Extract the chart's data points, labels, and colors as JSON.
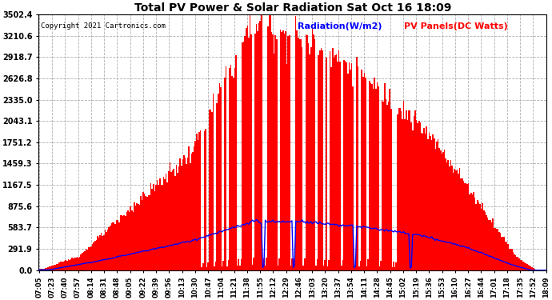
{
  "title": "Total PV Power & Solar Radiation Sat Oct 16 18:09",
  "copyright": "Copyright 2021 Cartronics.com",
  "legend_radiation": "Radiation(W/m2)",
  "legend_pv": "PV Panels(DC Watts)",
  "yticks": [
    0.0,
    291.9,
    583.7,
    875.6,
    1167.5,
    1459.3,
    1751.2,
    2043.1,
    2335.0,
    2626.8,
    2918.7,
    3210.6,
    3502.4
  ],
  "ymax": 3502.4,
  "ymin": 0.0,
  "bg_color": "#ffffff",
  "plot_bg_color": "#ffffff",
  "grid_color": "#b0b0b0",
  "bar_color": "#ff0000",
  "line_color": "#0000ff",
  "title_color": "#000000",
  "copyright_color": "#000000",
  "radiation_legend_color": "#0000ff",
  "pv_legend_color": "#ff0000",
  "n_points": 400,
  "xtick_labels": [
    "07:05",
    "07:23",
    "07:40",
    "07:57",
    "08:14",
    "08:31",
    "08:48",
    "09:05",
    "09:22",
    "09:39",
    "09:56",
    "10:13",
    "10:30",
    "10:47",
    "11:04",
    "11:21",
    "11:38",
    "11:55",
    "12:12",
    "12:29",
    "12:46",
    "13:03",
    "13:20",
    "13:37",
    "13:54",
    "14:11",
    "14:28",
    "14:45",
    "15:02",
    "15:19",
    "15:36",
    "15:53",
    "16:10",
    "16:27",
    "16:44",
    "17:01",
    "17:18",
    "17:35",
    "17:52",
    "18:09"
  ]
}
